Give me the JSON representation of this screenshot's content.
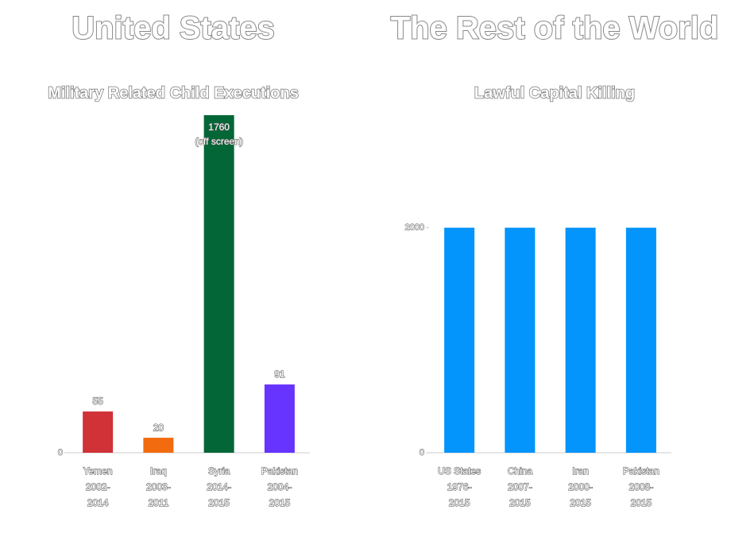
{
  "chart_data": [
    {
      "type": "bar",
      "title": "United States",
      "subtitle": "Military Related Child Executions",
      "categories": [
        [
          "Yemen",
          "2002-",
          "2014"
        ],
        [
          "Iraq",
          "2003-",
          "2011"
        ],
        [
          "Syria",
          "2014-",
          "2015"
        ],
        [
          "Pakistan",
          "2004-",
          "2015"
        ]
      ],
      "values": [
        55,
        20,
        1760,
        91
      ],
      "value_labels": [
        "55",
        "20",
        "1760",
        "91"
      ],
      "colors": [
        "#d03238",
        "#f26b0f",
        "#036636",
        "#6633ff"
      ],
      "annotation": "(off screen)",
      "ylim": [
        0,
        450
      ],
      "yticks": [
        0
      ]
    },
    {
      "type": "bar",
      "title": "The Rest of the World",
      "subtitle": "Lawful Capital Killing",
      "categories": [
        [
          "US States",
          "1976-",
          "2015"
        ],
        [
          "China",
          "2007-",
          "2015"
        ],
        [
          "Iran",
          "2000-",
          "2015"
        ],
        [
          "Pakistan",
          "2008-",
          "2015"
        ]
      ],
      "values": [
        2000,
        2000,
        2000,
        2000
      ],
      "color": "#0394fc",
      "ylim": [
        0,
        3000
      ],
      "yticks": [
        0,
        2000
      ]
    }
  ]
}
